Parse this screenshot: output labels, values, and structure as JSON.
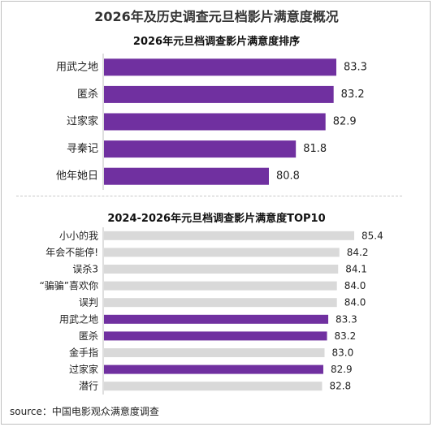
{
  "page": {
    "title": "2026年及历史调查元旦档影片满意度概况",
    "source": "source：中国电影观众满意度调查"
  },
  "colors": {
    "highlight": "#7030a0",
    "neutral": "#d9d9d9",
    "axis": "#bfbfbf"
  },
  "chart_data": [
    {
      "type": "bar",
      "orientation": "horizontal",
      "title": "2026年元旦档调查影片满意度排序",
      "xlabel": "",
      "ylabel": "",
      "categories": [
        "用武之地",
        "匿杀",
        "过家家",
        "寻秦记",
        "他年她日"
      ],
      "values": [
        83.3,
        83.2,
        82.9,
        81.8,
        80.8
      ],
      "value_labels": [
        "83.3",
        "83.2",
        "82.9",
        "81.8",
        "80.8"
      ],
      "highlight": [
        true,
        true,
        true,
        true,
        true
      ],
      "grid": false,
      "legend": "none"
    },
    {
      "type": "bar",
      "orientation": "horizontal",
      "title": "2024-2026年元旦档调查影片满意度TOP10",
      "xlabel": "",
      "ylabel": "",
      "categories": [
        "小小的我",
        "年会不能停!",
        "误杀3",
        "“骗骗”喜欢你",
        "误判",
        "用武之地",
        "匿杀",
        "金手指",
        "过家家",
        "潜行"
      ],
      "values": [
        85.4,
        84.2,
        84.1,
        84.0,
        84.0,
        83.3,
        83.2,
        83.0,
        82.9,
        82.8
      ],
      "value_labels": [
        "85.4",
        "84.2",
        "84.1",
        "84.0",
        "84.0",
        "83.3",
        "83.2",
        "83.0",
        "82.9",
        "82.8"
      ],
      "highlight": [
        false,
        false,
        false,
        false,
        false,
        true,
        true,
        false,
        true,
        false
      ],
      "grid": false,
      "legend": "none"
    }
  ]
}
